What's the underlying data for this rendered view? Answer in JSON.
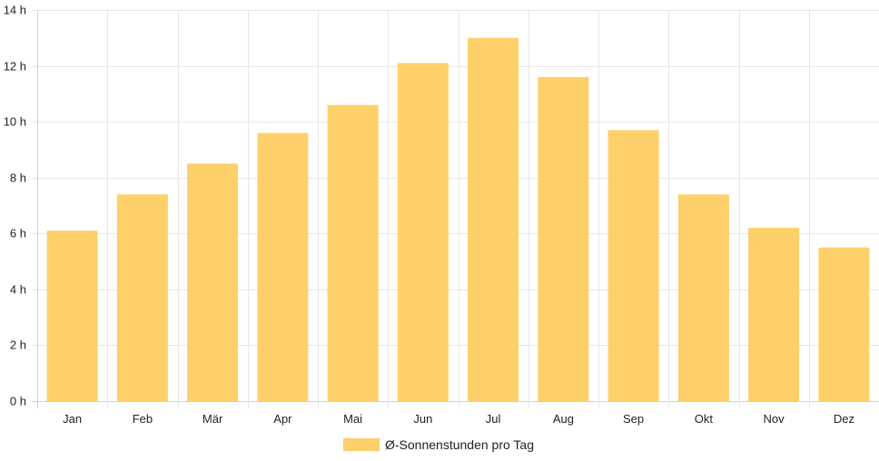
{
  "chart_data": {
    "type": "bar",
    "categories": [
      "Jan",
      "Feb",
      "Mär",
      "Apr",
      "Mai",
      "Jun",
      "Jul",
      "Aug",
      "Sep",
      "Okt",
      "Nov",
      "Dez"
    ],
    "series": [
      {
        "name": "Ø-Sonnenstunden pro Tag",
        "values": [
          6.1,
          7.4,
          8.5,
          9.6,
          10.6,
          12.1,
          13.0,
          11.6,
          9.7,
          7.4,
          6.2,
          5.5
        ]
      }
    ],
    "ylim": [
      0,
      14
    ],
    "yticks": [
      0,
      2,
      4,
      6,
      8,
      10,
      12,
      14
    ],
    "ytick_labels": [
      "0 h",
      "2 h",
      "4 h",
      "6 h",
      "8 h",
      "10 h",
      "12 h",
      "14 h"
    ],
    "title": "",
    "xlabel": "",
    "ylabel": "",
    "grid": true,
    "legend_position": "bottom-center",
    "colors": {
      "bar": "#fdd069",
      "grid": "#e6e6e6",
      "text": "#222222"
    }
  }
}
